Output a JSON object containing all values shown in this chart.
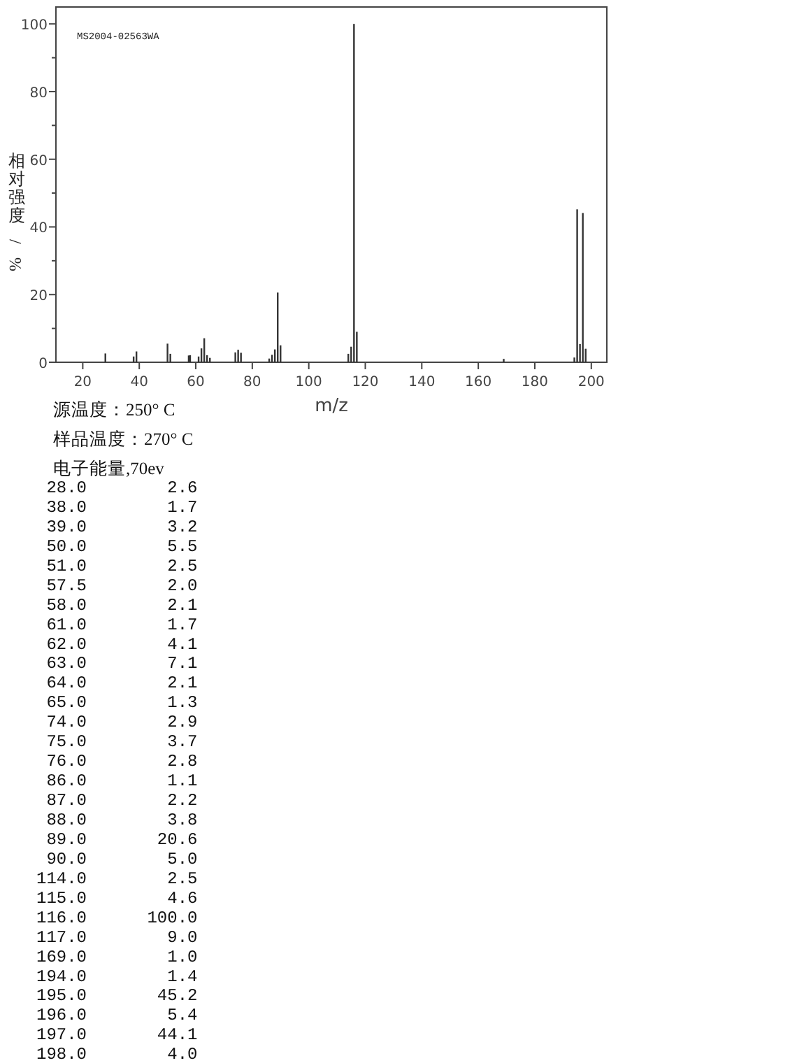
{
  "chart_data": {
    "type": "bar",
    "xlabel": "m/z",
    "ylabel": "相对强度/%",
    "color": "#333333",
    "x": [
      28,
      38,
      39,
      50,
      51,
      57.5,
      58,
      61,
      62,
      63,
      64,
      65,
      74,
      75,
      76,
      86,
      87,
      88,
      89,
      90,
      114,
      115,
      116,
      117,
      169,
      194,
      195,
      196,
      197,
      198
    ],
    "values": [
      2.6,
      1.7,
      3.2,
      5.5,
      2.5,
      2.0,
      2.1,
      1.7,
      4.1,
      7.1,
      2.1,
      1.3,
      2.9,
      3.7,
      2.8,
      1.1,
      2.2,
      3.8,
      20.6,
      5.0,
      2.5,
      4.6,
      100.0,
      9.0,
      1.0,
      1.4,
      45.2,
      5.4,
      44.1,
      4.0
    ],
    "xlim": [
      10.5,
      205.5
    ],
    "ylim": [
      0,
      105
    ],
    "xticks": [
      20,
      40,
      60,
      80,
      100,
      120,
      140,
      160,
      180,
      200
    ],
    "yticks": [
      0,
      {
        "value": 10,
        "label": null
      },
      20,
      {
        "value": 30,
        "label": null
      },
      40,
      {
        "value": 50,
        "label": null
      },
      60,
      {
        "value": 70,
        "label": null
      },
      80,
      {
        "value": 90,
        "label": null
      },
      100
    ],
    "grid": false,
    "annotations": [
      "MS2004-02563WA",
      "源温度：250° C",
      "样品温度：270° C",
      "电子能量,70ev",
      " 28.0        2.6",
      " 38.0        1.7",
      " 39.0        3.2",
      " 50.0        5.5",
      " 51.0        2.5",
      " 57.5        2.0",
      " 58.0        2.1",
      " 61.0        1.7",
      " 62.0        4.1",
      " 63.0        7.1",
      " 64.0        2.1",
      " 65.0        1.3",
      " 74.0        2.9",
      " 75.0        3.7",
      " 76.0        2.8",
      " 86.0        1.1",
      " 87.0        2.2",
      " 88.0        3.8",
      " 89.0       20.6",
      " 90.0        5.0",
      "114.0        2.5",
      "115.0        4.6",
      "116.0      100.0",
      "117.0        9.0",
      "169.0        1.0",
      "194.0        1.4",
      "195.0       45.2",
      "196.0        5.4",
      "197.0       44.1",
      "198.0        4.0"
    ]
  }
}
